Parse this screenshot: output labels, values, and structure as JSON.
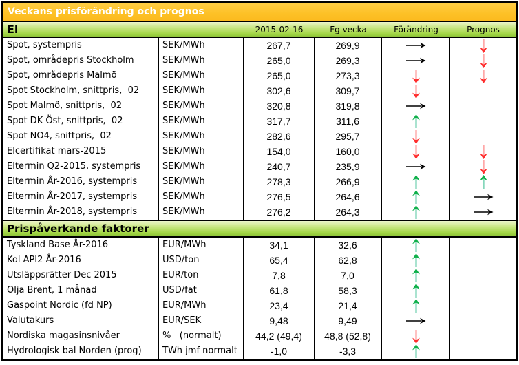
{
  "title": "Veckans prisförändring och prognos",
  "columns": {
    "date": "2015-02-16",
    "prev": "Fg vecka",
    "change": "Förändring",
    "forecast": "Prognos"
  },
  "colors": {
    "title_bar_orange": "#fdc127",
    "section_bar_green": "#9ad23e",
    "title_text": "#ffffff",
    "arrow_up_head": "#0fb04a",
    "arrow_up_shaft": "#86d7bb",
    "arrow_down_head": "#ff2d2d",
    "arrow_down_shaft": "#ffa8a8",
    "arrow_flat": "#000000"
  },
  "sections": [
    {
      "header": "El",
      "rows": [
        {
          "name": "Spot, systempris",
          "unit": "SEK/MWh",
          "current": "267,7",
          "prev": "269,9",
          "change": "right",
          "forecast": "down"
        },
        {
          "name": "Spot, områdepris Stockholm",
          "unit": "SEK/MWh",
          "current": "265,0",
          "prev": "269,3",
          "change": "right",
          "forecast": "down"
        },
        {
          "name": "Spot, områdepris Malmö",
          "unit": "SEK/MWh",
          "current": "265,0",
          "prev": "273,3",
          "change": "down",
          "forecast": "down"
        },
        {
          "name": "Spot Stockholm, snittpris,  02",
          "unit": "SEK/MWh",
          "current": "302,6",
          "prev": "309,7",
          "change": "down",
          "forecast": ""
        },
        {
          "name": "Spot Malmö, snittpris,  02",
          "unit": "SEK/MWh",
          "current": "320,8",
          "prev": "319,8",
          "change": "right",
          "forecast": ""
        },
        {
          "name": "Spot DK Öst, snittpris,  02",
          "unit": "SEK/MWh",
          "current": "317,7",
          "prev": "311,6",
          "change": "up",
          "forecast": ""
        },
        {
          "name": "Spot NO4, snittpris,  02",
          "unit": "SEK/MWh",
          "current": "282,6",
          "prev": "295,7",
          "change": "down",
          "forecast": ""
        },
        {
          "name": "Elcertifikat mars-2015",
          "unit": "SEK/MWh",
          "current": "154,0",
          "prev": "160,0",
          "change": "down",
          "forecast": "down"
        },
        {
          "name": "Eltermin Q2-2015, systempris",
          "unit": "SEK/MWh",
          "current": "240,7",
          "prev": "235,9",
          "change": "right",
          "forecast": "down"
        },
        {
          "name": "Eltermin År-2016, systempris",
          "unit": "SEK/MWh",
          "current": "278,3",
          "prev": "266,9",
          "change": "up",
          "forecast": "up"
        },
        {
          "name": "Eltermin År-2017, systempris",
          "unit": "SEK/MWh",
          "current": "276,5",
          "prev": "264,6",
          "change": "up",
          "forecast": "right"
        },
        {
          "name": "Eltermin År-2018, systempris",
          "unit": "SEK/MWh",
          "current": "276,2",
          "prev": "264,3",
          "change": "up",
          "forecast": "right"
        }
      ]
    },
    {
      "header": "Prispåverkande faktorer",
      "rows": [
        {
          "name": "Tyskland Base År-2016",
          "unit": "EUR/MWh",
          "current": "34,1",
          "prev": "32,6",
          "change": "up",
          "forecast": ""
        },
        {
          "name": "Kol API2 År-2016",
          "unit": "USD/ton",
          "current": "65,4",
          "prev": "62,8",
          "change": "up",
          "forecast": ""
        },
        {
          "name": "Utsläppsrätter Dec 2015",
          "unit": "EUR/ton",
          "current": "7,8",
          "prev": "7,0",
          "change": "up",
          "forecast": ""
        },
        {
          "name": "Olja Brent, 1 månad",
          "unit": "USD/fat",
          "current": "61,8",
          "prev": "58,3",
          "change": "up",
          "forecast": ""
        },
        {
          "name": "Gaspoint Nordic (fd NP)",
          "unit": "EUR/MWh",
          "current": "23,4",
          "prev": "21,4",
          "change": "up",
          "forecast": ""
        },
        {
          "name": "Valutakurs",
          "unit": "EUR/SEK",
          "current": "9,48",
          "prev": "9,49",
          "change": "right",
          "forecast": ""
        },
        {
          "name": "Nordiska magasinsnivåer",
          "unit": "%   (normalt)",
          "current": "44,2 (49,4)",
          "prev": "48,8 (52,8)",
          "change": "down",
          "forecast": ""
        },
        {
          "name": "Hydrologisk bal Norden (prog)",
          "unit": "TWh jmf normalt",
          "current": "-1,0",
          "prev": "-3,3",
          "change": "up",
          "forecast": ""
        }
      ]
    }
  ]
}
